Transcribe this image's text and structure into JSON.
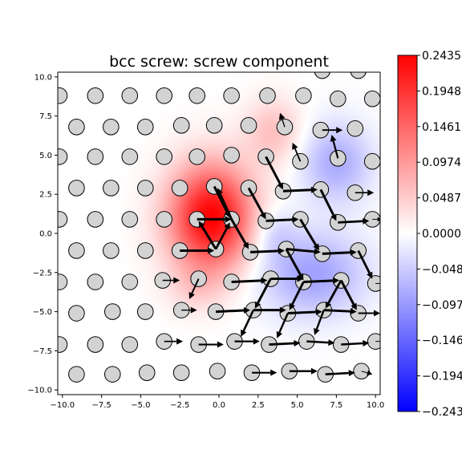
{
  "chart_data": {
    "type": "heatmap",
    "title": "bcc screw: screw component",
    "xlim": [
      -10.3,
      10.3
    ],
    "ylim": [
      -10.3,
      10.3
    ],
    "xticks": [
      {
        "value": -10.0,
        "label": "−10.0"
      },
      {
        "value": -7.5,
        "label": "−7.5"
      },
      {
        "value": -5.0,
        "label": "−5.0"
      },
      {
        "value": -2.5,
        "label": "−2.5"
      },
      {
        "value": 0.0,
        "label": "0.0"
      },
      {
        "value": 2.5,
        "label": "2.5"
      },
      {
        "value": 5.0,
        "label": "5.0"
      },
      {
        "value": 7.5,
        "label": "7.5"
      },
      {
        "value": 10.0,
        "label": "10.0"
      }
    ],
    "yticks": [
      {
        "value": 10.0,
        "label": "10.0"
      },
      {
        "value": 7.5,
        "label": "7.5"
      },
      {
        "value": 5.0,
        "label": "5.0"
      },
      {
        "value": 2.5,
        "label": "2.5"
      },
      {
        "value": 0.0,
        "label": "0.0"
      },
      {
        "value": -2.5,
        "label": "−2.5"
      },
      {
        "value": -5.0,
        "label": "−5.0"
      },
      {
        "value": -7.5,
        "label": "−7.5"
      },
      {
        "value": -10.0,
        "label": "−10.0"
      }
    ],
    "colorbar": {
      "colormap": "bwr",
      "vmin": -0.2435,
      "vmax": 0.2435,
      "ticks": [
        {
          "value": 0.2435,
          "label": "0.2435"
        },
        {
          "value": 0.1948,
          "label": "0.1948"
        },
        {
          "value": 0.1461,
          "label": "0.1461"
        },
        {
          "value": 0.0974,
          "label": "0.0974"
        },
        {
          "value": 0.0487,
          "label": "0.0487"
        },
        {
          "value": 0.0,
          "label": "0.0000"
        },
        {
          "value": -0.0487,
          "label": "−0.0487"
        },
        {
          "value": -0.0974,
          "label": "−0.0974"
        },
        {
          "value": -0.1461,
          "label": "−0.1461"
        },
        {
          "value": -0.1948,
          "label": "−0.1948"
        },
        {
          "value": -0.2435,
          "label": "−0.2435"
        }
      ]
    },
    "field_lobes": [
      {
        "x": -0.5,
        "y": 1.0,
        "sx": 1.9,
        "sy": 2.4,
        "value": 0.2435
      },
      {
        "x": 3.5,
        "y": 6.5,
        "sx": 1.3,
        "sy": 1.5,
        "value": 0.06
      },
      {
        "x": -1.5,
        "y": -3.5,
        "sx": 1.3,
        "sy": 1.1,
        "value": 0.03
      },
      {
        "x": 6.0,
        "y": -2.6,
        "sx": 2.4,
        "sy": 1.9,
        "value": -0.09
      },
      {
        "x": 7.5,
        "y": 4.5,
        "sx": 1.6,
        "sy": 1.8,
        "value": -0.08
      },
      {
        "x": 3.5,
        "y": 0.0,
        "sx": 1.0,
        "sy": 1.2,
        "value": -0.04
      }
    ],
    "atoms": [
      [
        -10.2,
        8.8
      ],
      [
        -7.9,
        8.8
      ],
      [
        -5.7,
        8.8
      ],
      [
        -3.5,
        8.8
      ],
      [
        -1.4,
        8.8
      ],
      [
        0.8,
        8.8
      ],
      [
        3.1,
        8.8
      ],
      [
        5.4,
        8.8
      ],
      [
        7.6,
        8.6
      ],
      [
        9.8,
        8.6
      ],
      [
        6.6,
        10.4
      ],
      [
        8.9,
        10.4
      ],
      [
        -9.1,
        6.8
      ],
      [
        -6.9,
        6.8
      ],
      [
        -4.7,
        6.8
      ],
      [
        -2.4,
        6.9
      ],
      [
        -0.3,
        6.9
      ],
      [
        1.9,
        6.9
      ],
      [
        4.2,
        6.8
      ],
      [
        6.5,
        6.6
      ],
      [
        8.7,
        6.7
      ],
      [
        -10.2,
        4.9
      ],
      [
        -7.9,
        4.9
      ],
      [
        -5.7,
        4.9
      ],
      [
        -3.5,
        4.9
      ],
      [
        -1.4,
        4.9
      ],
      [
        0.8,
        5.0
      ],
      [
        3.0,
        4.9
      ],
      [
        5.2,
        4.6
      ],
      [
        7.6,
        4.8
      ],
      [
        9.8,
        4.6
      ],
      [
        -9.1,
        2.9
      ],
      [
        -6.9,
        2.9
      ],
      [
        -4.7,
        2.9
      ],
      [
        -2.5,
        2.9
      ],
      [
        -0.3,
        3.0
      ],
      [
        1.9,
        2.9
      ],
      [
        4.1,
        2.7
      ],
      [
        6.5,
        2.8
      ],
      [
        8.7,
        2.6
      ],
      [
        -10.2,
        0.9
      ],
      [
        -7.9,
        0.9
      ],
      [
        -5.7,
        0.9
      ],
      [
        -3.5,
        0.9
      ],
      [
        -1.4,
        0.9
      ],
      [
        0.8,
        0.9
      ],
      [
        3.0,
        0.8
      ],
      [
        5.2,
        0.9
      ],
      [
        7.6,
        0.7
      ],
      [
        9.8,
        0.9
      ],
      [
        -9.1,
        -1.1
      ],
      [
        -6.9,
        -1.1
      ],
      [
        -4.7,
        -1.1
      ],
      [
        -2.5,
        -1.1
      ],
      [
        -0.2,
        -1.0
      ],
      [
        2.0,
        -1.2
      ],
      [
        4.3,
        -1.0
      ],
      [
        6.6,
        -1.3
      ],
      [
        8.9,
        -1.1
      ],
      [
        -10.2,
        -3.1
      ],
      [
        -7.9,
        -3.1
      ],
      [
        -5.7,
        -3.1
      ],
      [
        -3.6,
        -3.0
      ],
      [
        -1.3,
        -2.9
      ],
      [
        0.8,
        -3.1
      ],
      [
        3.3,
        -2.9
      ],
      [
        5.4,
        -3.1
      ],
      [
        7.8,
        -3.0
      ],
      [
        10.0,
        -3.2
      ],
      [
        -9.1,
        -5.1
      ],
      [
        -6.8,
        -5.0
      ],
      [
        -4.7,
        -5.0
      ],
      [
        -2.4,
        -4.9
      ],
      [
        -0.2,
        -5.0
      ],
      [
        2.2,
        -4.9
      ],
      [
        4.4,
        -5.1
      ],
      [
        6.7,
        -4.9
      ],
      [
        8.9,
        -5.1
      ],
      [
        -10.2,
        -7.1
      ],
      [
        -7.9,
        -7.1
      ],
      [
        -5.7,
        -7.1
      ],
      [
        -3.5,
        -6.9
      ],
      [
        -1.3,
        -7.1
      ],
      [
        1.0,
        -6.9
      ],
      [
        3.2,
        -7.1
      ],
      [
        5.6,
        -6.9
      ],
      [
        7.8,
        -7.1
      ],
      [
        10.0,
        -6.9
      ],
      [
        -9.1,
        -9.0
      ],
      [
        -6.8,
        -9.0
      ],
      [
        -4.6,
        -8.9
      ],
      [
        -2.4,
        -8.9
      ],
      [
        -0.1,
        -8.8
      ],
      [
        2.1,
        -8.9
      ],
      [
        4.5,
        -8.8
      ],
      [
        6.8,
        -9.0
      ],
      [
        9.1,
        -8.8
      ]
    ],
    "arrows": [
      [
        -1.4,
        0.9,
        2.2,
        0.0
      ],
      [
        -2.5,
        -1.1,
        2.2,
        0.0
      ],
      [
        0.8,
        0.9,
        -0.9,
        2.0
      ],
      [
        0.8,
        0.9,
        1.1,
        -1.9
      ],
      [
        -0.2,
        -1.0,
        -1.1,
        1.8
      ],
      [
        -0.2,
        -1.0,
        0.9,
        1.7
      ],
      [
        2.0,
        -1.2,
        2.2,
        0.1
      ],
      [
        1.9,
        2.9,
        1.1,
        -2.0
      ],
      [
        -0.3,
        3.0,
        1.0,
        -2.0
      ],
      [
        3.0,
        0.8,
        2.1,
        0.1
      ],
      [
        4.3,
        -1.0,
        1.1,
        -2.0
      ],
      [
        5.2,
        0.9,
        1.2,
        -2.0
      ],
      [
        5.4,
        -3.1,
        2.3,
        0.1
      ],
      [
        3.3,
        -2.9,
        2.1,
        0.0
      ],
      [
        0.8,
        -3.1,
        2.3,
        0.1
      ],
      [
        4.1,
        2.7,
        2.2,
        0.1
      ],
      [
        6.5,
        2.8,
        1.0,
        -2.0
      ],
      [
        7.6,
        0.7,
        2.0,
        0.1
      ],
      [
        8.9,
        -1.1,
        0.9,
        -1.8
      ],
      [
        7.8,
        -3.0,
        1.0,
        -1.9
      ],
      [
        4.3,
        -1.0,
        2.2,
        -0.2
      ],
      [
        6.6,
        -1.3,
        2.2,
        0.1
      ],
      [
        2.2,
        -4.9,
        2.1,
        0.0
      ],
      [
        -0.2,
        -5.0,
        2.2,
        0.1
      ],
      [
        4.4,
        -5.1,
        2.2,
        0.1
      ],
      [
        6.7,
        -4.9,
        2.1,
        -0.1
      ],
      [
        8.9,
        -5.1,
        1.4,
        0.0
      ],
      [
        3.0,
        4.9,
        1.1,
        -2.1
      ],
      [
        5.2,
        4.6,
        -0.5,
        1.2
      ],
      [
        7.6,
        4.8,
        -0.4,
        1.5
      ],
      [
        3.3,
        -2.9,
        -1.0,
        -1.9
      ],
      [
        5.4,
        -3.1,
        -0.9,
        -1.8
      ],
      [
        7.8,
        -3.0,
        -1.0,
        -1.8
      ],
      [
        2.2,
        -4.9,
        -0.8,
        -1.7
      ],
      [
        4.4,
        -5.1,
        -0.7,
        -1.6
      ],
      [
        6.7,
        -4.9,
        -0.6,
        -1.6
      ],
      [
        1.0,
        -6.9,
        1.6,
        0.0
      ],
      [
        3.2,
        -7.1,
        2.0,
        0.1
      ],
      [
        5.6,
        -6.9,
        1.8,
        -0.1
      ],
      [
        7.8,
        -7.1,
        1.8,
        0.1
      ],
      [
        -1.3,
        -7.1,
        1.6,
        0.0
      ],
      [
        -3.5,
        -6.9,
        1.2,
        0.0
      ],
      [
        2.1,
        -8.9,
        1.6,
        0.0
      ],
      [
        4.5,
        -8.8,
        1.8,
        0.0
      ],
      [
        6.8,
        -9.0,
        1.9,
        0.1
      ],
      [
        -3.6,
        -3.0,
        1.1,
        0.0
      ],
      [
        -1.3,
        -2.9,
        -0.6,
        -1.3
      ],
      [
        -2.4,
        -4.9,
        1.0,
        0.0
      ],
      [
        6.6,
        6.6,
        1.3,
        0.0
      ],
      [
        4.2,
        6.8,
        -0.3,
        0.9
      ],
      [
        9.8,
        0.9,
        0.6,
        0.0
      ],
      [
        8.7,
        2.6,
        1.2,
        0.0
      ],
      [
        9.1,
        -8.8,
        0.7,
        -0.2
      ],
      [
        10.0,
        -6.9,
        0.6,
        0.0
      ],
      [
        10.0,
        -3.2,
        0.5,
        0.0
      ]
    ]
  }
}
